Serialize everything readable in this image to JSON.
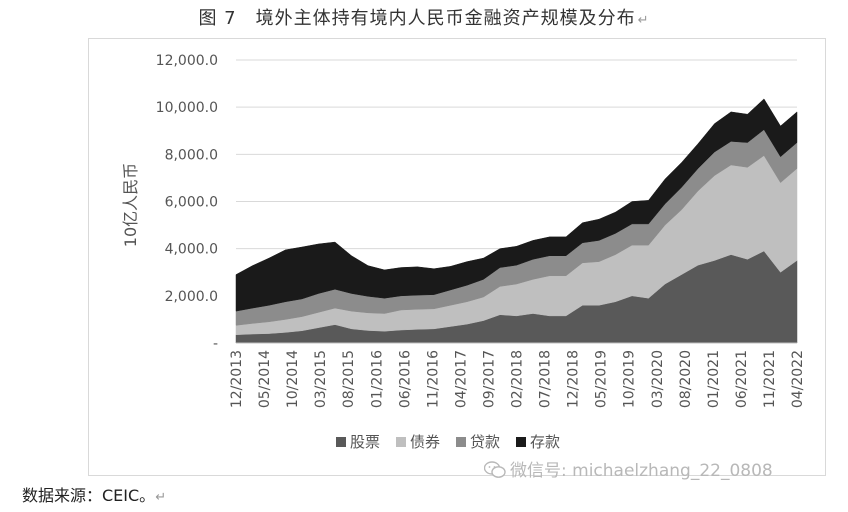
{
  "figure": {
    "title": "图 7　境外主体持有境内人民币金融资产规模及分布",
    "source": "数据来源：CEIC。",
    "watermark": "微信号: michaelzhang_22_0808",
    "paragraph_mark": "↵"
  },
  "chart_data": {
    "type": "area",
    "stacked": true,
    "ylabel": "10亿人民币",
    "ylim": [
      0,
      12000
    ],
    "yticks": [
      "-",
      "2,000.0",
      "4,000.0",
      "6,000.0",
      "8,000.0",
      "10,000.0",
      "12,000.0"
    ],
    "ytick_values": [
      0,
      2000,
      4000,
      6000,
      8000,
      10000,
      12000
    ],
    "grid": true,
    "legend_position": "bottom",
    "x_tick_labels": [
      "12/2013",
      "05/2014",
      "10/2014",
      "03/2015",
      "08/2015",
      "01/2016",
      "06/2016",
      "11/2016",
      "04/2017",
      "09/2017",
      "02/2018",
      "07/2018",
      "12/2018",
      "05/2019",
      "10/2019",
      "03/2020",
      "08/2020",
      "01/2021",
      "06/2021",
      "11/2021",
      "04/2022"
    ],
    "x": [
      "12/2013",
      "03/2014",
      "06/2014",
      "09/2014",
      "12/2014",
      "03/2015",
      "06/2015",
      "09/2015",
      "12/2015",
      "03/2016",
      "06/2016",
      "09/2016",
      "12/2016",
      "03/2017",
      "06/2017",
      "09/2017",
      "12/2017",
      "03/2018",
      "06/2018",
      "09/2018",
      "12/2018",
      "03/2019",
      "06/2019",
      "09/2019",
      "12/2019",
      "03/2020",
      "06/2020",
      "09/2020",
      "12/2020",
      "03/2021",
      "06/2021",
      "09/2021",
      "12/2021",
      "03/2022",
      "06/2022"
    ],
    "series": [
      {
        "name": "股票",
        "color": "#595959",
        "values": [
          350,
          380,
          400,
          450,
          520,
          650,
          780,
          600,
          530,
          500,
          550,
          580,
          600,
          700,
          800,
          950,
          1200,
          1150,
          1250,
          1150,
          1150,
          1600,
          1600,
          1750,
          2000,
          1900,
          2500,
          2900,
          3300,
          3500,
          3750,
          3550,
          3900,
          3000,
          3500
        ]
      },
      {
        "name": "债券",
        "color": "#bfbfbf",
        "values": [
          400,
          450,
          500,
          550,
          600,
          650,
          700,
          750,
          750,
          750,
          850,
          850,
          850,
          900,
          950,
          1000,
          1200,
          1350,
          1450,
          1700,
          1700,
          1800,
          1850,
          2000,
          2150,
          2250,
          2500,
          2750,
          3150,
          3600,
          3800,
          3900,
          4050,
          3800,
          3900
        ]
      },
      {
        "name": "贷款",
        "color": "#8c8c8c",
        "values": [
          600,
          650,
          700,
          750,
          750,
          800,
          800,
          750,
          700,
          650,
          600,
          600,
          600,
          650,
          700,
          750,
          800,
          800,
          850,
          850,
          850,
          850,
          900,
          900,
          900,
          900,
          900,
          950,
          950,
          1000,
          1000,
          1050,
          1100,
          1100,
          1100
        ]
      },
      {
        "name": "存款",
        "color": "#1a1a1a",
        "values": [
          1550,
          1800,
          2000,
          2200,
          2200,
          2100,
          2000,
          1600,
          1300,
          1200,
          1200,
          1200,
          1100,
          1000,
          1000,
          900,
          800,
          800,
          800,
          800,
          800,
          850,
          900,
          900,
          950,
          1000,
          1050,
          1050,
          1050,
          1200,
          1250,
          1200,
          1300,
          1300,
          1300
        ]
      }
    ]
  }
}
